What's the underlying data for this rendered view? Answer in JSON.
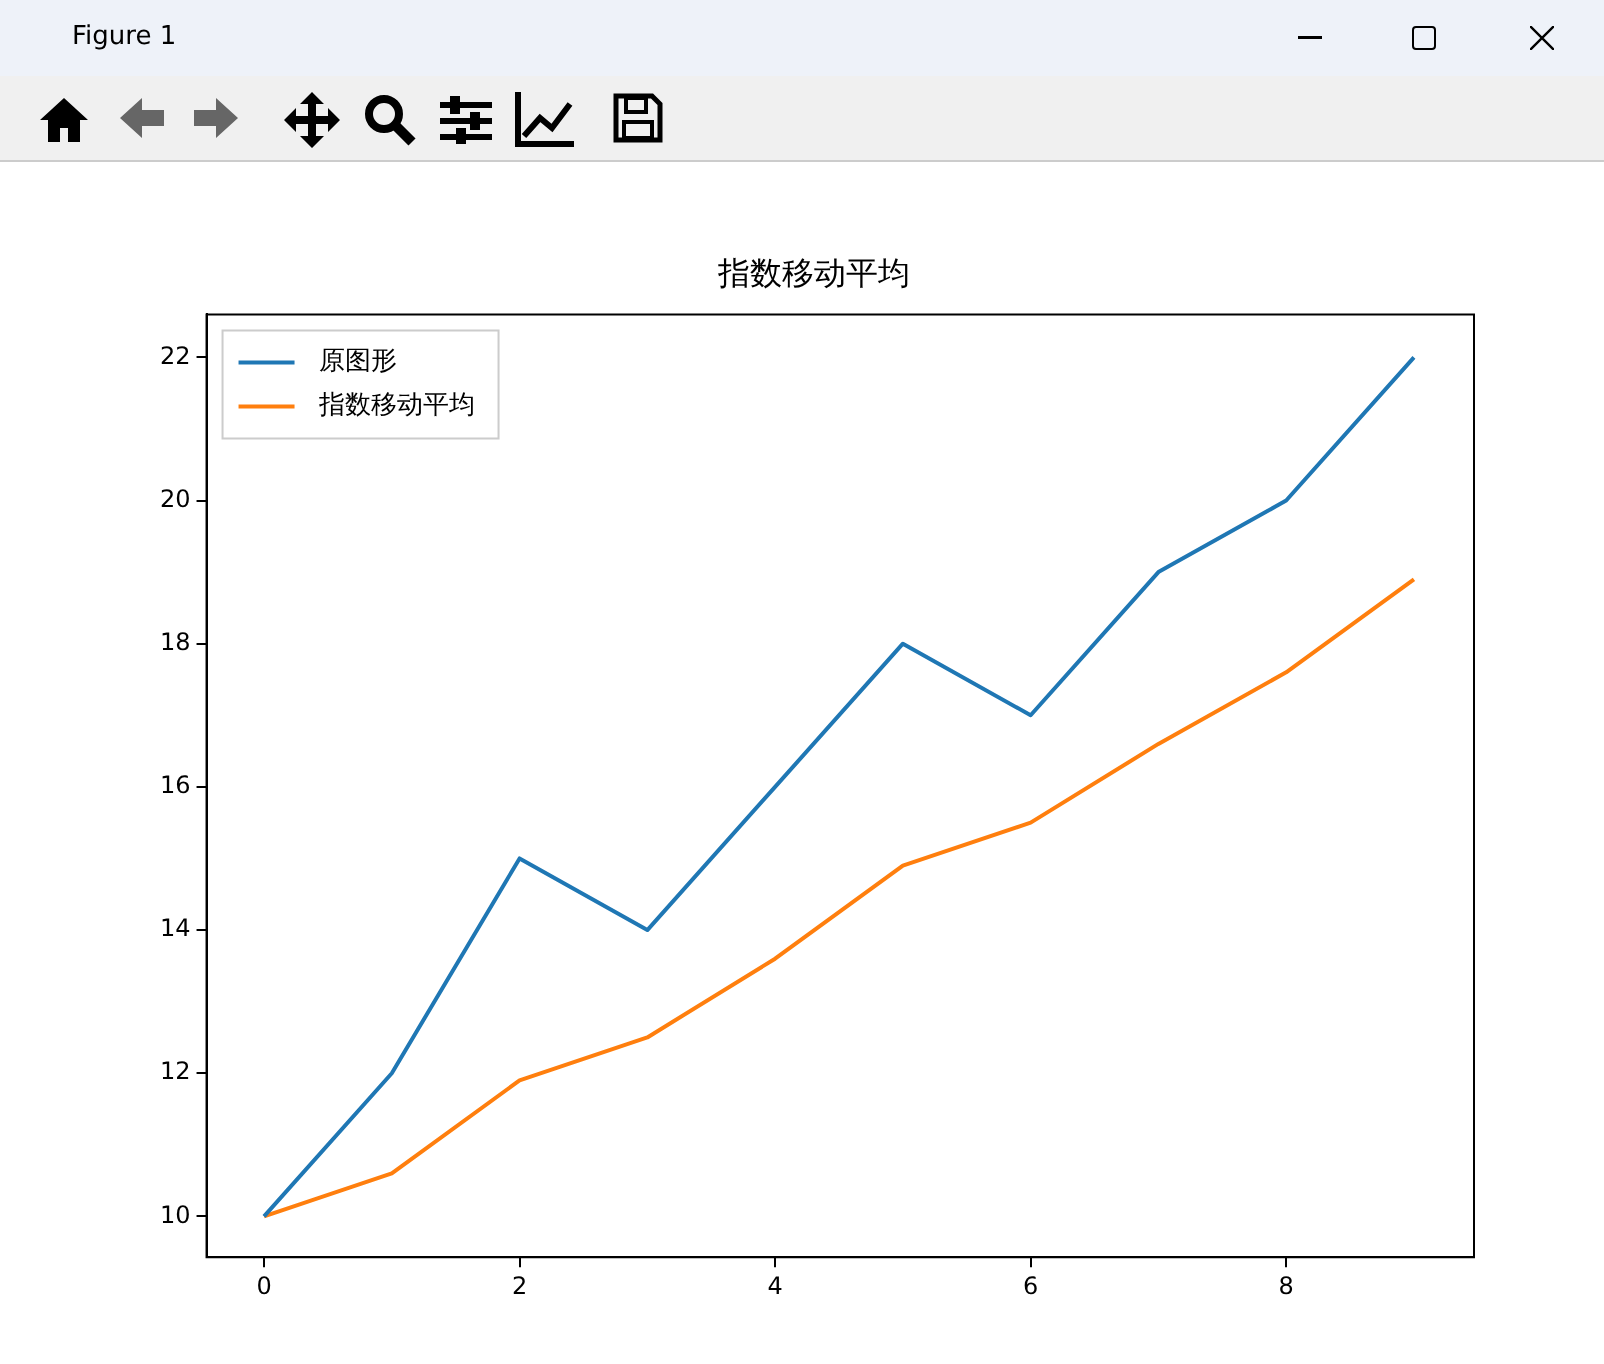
{
  "chart_data": {
    "type": "line",
    "title": "指数移动平均",
    "x": [
      0,
      1,
      2,
      3,
      4,
      5,
      6,
      7,
      8,
      9
    ],
    "series": [
      {
        "name": "原图形",
        "color": "#1f77b4",
        "values": [
          10,
          12,
          15,
          14,
          16,
          18,
          17,
          19,
          20,
          22
        ]
      },
      {
        "name": "指数移动平均",
        "color": "#ff7f0e",
        "values": [
          10,
          10.6,
          11.9,
          12.5,
          13.6,
          14.9,
          15.5,
          16.6,
          17.6,
          18.9
        ]
      }
    ],
    "xlim": [
      -0.45,
      9.47
    ],
    "xticks": [
      0,
      2,
      4,
      6,
      8
    ],
    "ylim": [
      9.43,
      22.6
    ],
    "yticks": [
      10,
      12,
      14,
      16,
      18,
      20,
      22
    ],
    "grid": false,
    "legend": "top left",
    "marker": "none",
    "line_style": "solid",
    "annotations": [
      "Figure 1"
    ]
  }
}
